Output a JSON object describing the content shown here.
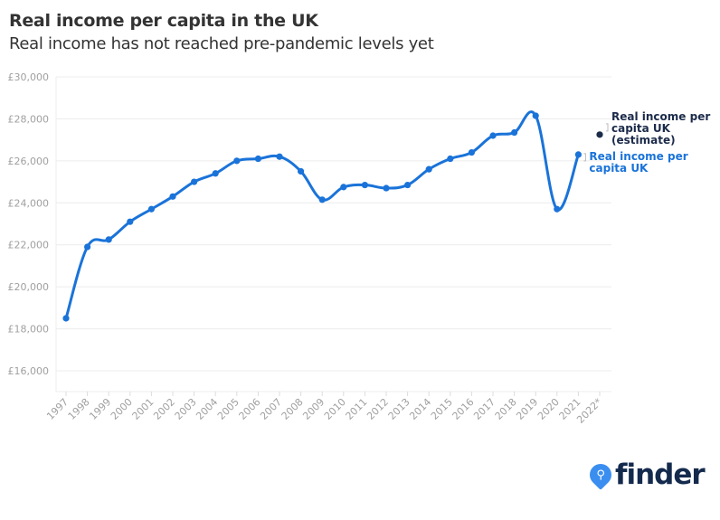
{
  "header": {
    "title": "Real income per capita in the UK",
    "subtitle": "Real income has not reached pre-pandemic levels yet"
  },
  "colors": {
    "series": "#1a73d9",
    "estimate": "#1c2b4a",
    "grid": "#ececec",
    "tick": "#a0a0a0"
  },
  "logo": {
    "text": "finder",
    "icon": "search-icon"
  },
  "chart_data": {
    "type": "line",
    "title": "Real income per capita in the UK",
    "subtitle": "Real income has not reached pre-pandemic levels yet",
    "xlabel": "",
    "ylabel": "",
    "ylim": [
      15000,
      30000
    ],
    "yticks": [
      16000,
      18000,
      20000,
      22000,
      24000,
      26000,
      28000,
      30000
    ],
    "ytick_labels": [
      "£16,000",
      "£18,000",
      "£20,000",
      "£22,000",
      "£24,000",
      "£26,000",
      "£28,000",
      "£30,000"
    ],
    "categories": [
      "1997",
      "1998",
      "1999",
      "2000",
      "2001",
      "2002",
      "2003",
      "2004",
      "2005",
      "2006",
      "2007",
      "2008",
      "2009",
      "2010",
      "2011",
      "2012",
      "2013",
      "2014",
      "2015",
      "2016",
      "2017",
      "2018",
      "2019",
      "2020",
      "2021",
      "2022*"
    ],
    "grid": true,
    "series": [
      {
        "name": "Real income per capita UK",
        "values": [
          18500,
          21900,
          22250,
          23100,
          23700,
          24300,
          25000,
          25400,
          26000,
          26100,
          26200,
          25500,
          24150,
          24750,
          24850,
          24700,
          24850,
          25600,
          26100,
          26400,
          27200,
          27350,
          28150,
          23700,
          26300,
          null
        ]
      },
      {
        "name": "Real income per capita UK (estimate)",
        "values": [
          null,
          null,
          null,
          null,
          null,
          null,
          null,
          null,
          null,
          null,
          null,
          null,
          null,
          null,
          null,
          null,
          null,
          null,
          null,
          null,
          null,
          null,
          null,
          null,
          null,
          27250
        ]
      }
    ],
    "legend": "inline-right",
    "labels": {
      "series": [
        "Real income per",
        "capita UK"
      ],
      "estimate": [
        "Real income per",
        "capita UK",
        "(estimate)"
      ]
    }
  }
}
